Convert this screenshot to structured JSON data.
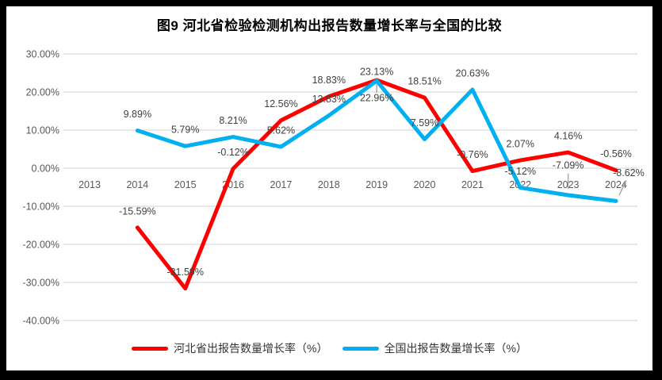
{
  "frame": {
    "background": "#000000",
    "canvas": "#ffffff"
  },
  "chart_data": {
    "type": "line",
    "title": "图9 河北省检验检测机构出报告数量增长率与全国的比较",
    "categories": [
      "2013",
      "2014",
      "2015",
      "2016",
      "2017",
      "2018",
      "2019",
      "2020",
      "2021",
      "2022",
      "2023",
      "2024"
    ],
    "series": [
      {
        "name": "河北省出报告数量增长率（%）",
        "color": "#ff0000",
        "values": [
          null,
          -15.59,
          -31.59,
          -0.12,
          12.56,
          18.83,
          23.13,
          18.51,
          -0.76,
          2.07,
          4.16,
          -0.56
        ]
      },
      {
        "name": "全国出报告数量增长率（%）",
        "color": "#00b0f0",
        "values": [
          null,
          9.89,
          5.79,
          8.21,
          5.62,
          13.83,
          22.96,
          7.59,
          20.63,
          -5.12,
          -7.09,
          -8.62
        ]
      }
    ],
    "y_axis": {
      "min": -40,
      "max": 30,
      "step": 10,
      "tick_suffix": "%",
      "tick_decimals": 2
    },
    "grid": true,
    "gridline_color": "#d9d9d9",
    "axis_text_color": "#595959",
    "data_label_color": "#404040",
    "legend_position": "bottom",
    "label_overrides": [
      {
        "series": 0,
        "index": 6,
        "dy": -11
      },
      {
        "series": 1,
        "index": 6,
        "dy": 21,
        "leader": true
      },
      {
        "series": 1,
        "index": 10,
        "dy": -38,
        "leader": true
      },
      {
        "series": 1,
        "index": 11,
        "dx": 16,
        "dy": -36,
        "leader": true
      }
    ]
  }
}
